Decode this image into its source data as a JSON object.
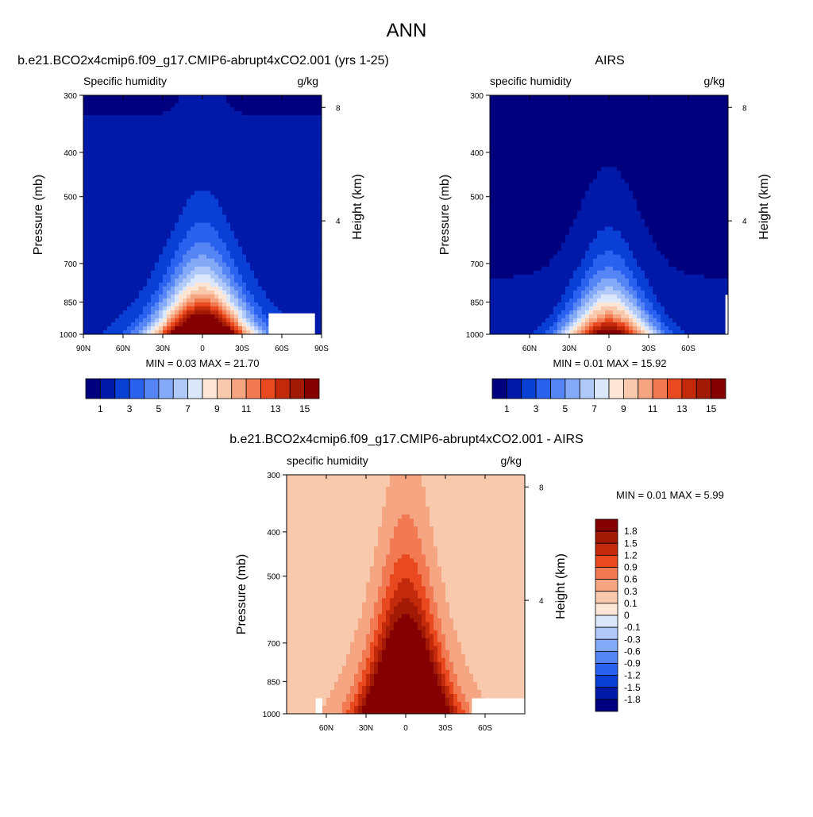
{
  "figure": {
    "title": "ANN"
  },
  "chart_data": [
    {
      "type": "heatmap",
      "title": "b.e21.BCO2x4cmip6.f09_g17.CMIP6-abrupt4xCO2.001 (yrs 1-25)",
      "subtitle_left": "Specific humidity",
      "units": "g/kg",
      "ylabel": "Pressure (mb)",
      "ylabel_right": "Height (km)",
      "x_ticks": [
        "90N",
        "60N",
        "30N",
        "0",
        "30S",
        "60S",
        "90S"
      ],
      "x_tick_values": [
        90,
        60,
        30,
        0,
        -30,
        -60,
        -90
      ],
      "xlim": [
        90,
        -90
      ],
      "y_ticks": [
        "300",
        "400",
        "500",
        "700",
        "850",
        "1000"
      ],
      "y_tick_values": [
        300,
        400,
        500,
        700,
        850,
        1000
      ],
      "ylim": [
        1000,
        300
      ],
      "y_scale": "log",
      "height_ticks": [
        "8",
        "4"
      ],
      "height_tick_values": [
        8,
        4
      ],
      "stats": {
        "min_label": "MIN =",
        "min": "0.03",
        "max_label": "MAX =",
        "max": "21.70"
      },
      "levels": [
        1,
        2,
        3,
        4,
        5,
        6,
        7,
        8,
        9,
        10,
        11,
        12,
        13,
        14,
        15
      ],
      "colorbar_labels": [
        "1",
        "3",
        "5",
        "7",
        "9",
        "11",
        "13",
        "15"
      ],
      "colorbar_orientation": "horizontal",
      "colors": [
        "#00007f",
        "#0019a8",
        "#0a3fd6",
        "#2a62ef",
        "#5585f4",
        "#84a9f7",
        "#b0c9f9",
        "#dbe7fb",
        "#fde6d6",
        "#f9c9ad",
        "#f5a582",
        "#f27a52",
        "#e9491f",
        "#c22a0b",
        "#a21a06",
        "#850000"
      ],
      "field": {
        "peak": 21.7,
        "center_lat": 0,
        "decay": 1.48,
        "lat_width": 36,
        "pole_floor": 0.6
      },
      "missing_data": [
        {
          "lat_from": 50,
          "lat_to": 85,
          "p_from": 900,
          "p_to": 1000,
          "side": "south"
        }
      ]
    },
    {
      "type": "heatmap",
      "title": "AIRS",
      "subtitle_left": "specific humidity",
      "units": "g/kg",
      "ylabel": "Pressure (mb)",
      "ylabel_right": "Height (km)",
      "x_ticks": [
        "60N",
        "30N",
        "0",
        "30S",
        "60S"
      ],
      "x_tick_values": [
        60,
        30,
        0,
        -30,
        -60
      ],
      "xlim": [
        90,
        -90
      ],
      "y_ticks": [
        "300",
        "400",
        "500",
        "700",
        "850",
        "1000"
      ],
      "y_tick_values": [
        300,
        400,
        500,
        700,
        850,
        1000
      ],
      "ylim": [
        1000,
        300
      ],
      "y_scale": "log",
      "height_ticks": [
        "8",
        "4"
      ],
      "height_tick_values": [
        8,
        4
      ],
      "stats": {
        "min_label": "MIN =",
        "min": "0.01",
        "max_label": "MAX =",
        "max": "15.92"
      },
      "levels": [
        1,
        2,
        3,
        4,
        5,
        6,
        7,
        8,
        9,
        10,
        11,
        12,
        13,
        14,
        15
      ],
      "colorbar_labels": [
        "1",
        "3",
        "5",
        "7",
        "9",
        "11",
        "13",
        "15"
      ],
      "colorbar_orientation": "horizontal",
      "colors": [
        "#00007f",
        "#0019a8",
        "#0a3fd6",
        "#2a62ef",
        "#5585f4",
        "#84a9f7",
        "#b0c9f9",
        "#dbe7fb",
        "#fde6d6",
        "#f9c9ad",
        "#f5a582",
        "#f27a52",
        "#e9491f",
        "#c22a0b",
        "#a21a06",
        "#850000"
      ],
      "field": {
        "peak": 15.9,
        "center_lat": 0,
        "decay": 1.62,
        "lat_width": 34,
        "pole_floor": 0.4
      },
      "missing_data": [
        {
          "lat_from": 88,
          "lat_to": 90,
          "p_from": 820,
          "p_to": 1000,
          "side": "south"
        }
      ]
    },
    {
      "type": "heatmap",
      "title": "b.e21.BCO2x4cmip6.f09_g17.CMIP6-abrupt4xCO2.001 - AIRS",
      "subtitle_left": "specific humidity",
      "units": "g/kg",
      "ylabel": "Pressure (mb)",
      "ylabel_right": "Height (km)",
      "x_ticks": [
        "60N",
        "30N",
        "0",
        "30S",
        "60S"
      ],
      "x_tick_values": [
        60,
        30,
        0,
        -30,
        -60
      ],
      "xlim": [
        90,
        -90
      ],
      "y_ticks": [
        "300",
        "400",
        "500",
        "700",
        "850",
        "1000"
      ],
      "y_tick_values": [
        300,
        400,
        500,
        700,
        850,
        1000
      ],
      "ylim": [
        1000,
        300
      ],
      "y_scale": "log",
      "height_ticks": [
        "8",
        "4"
      ],
      "height_tick_values": [
        8,
        4
      ],
      "stats": {
        "min_label": "MIN =",
        "min": "0.01",
        "max_label": "MAX =",
        "max": "5.99"
      },
      "levels": [
        -1.8,
        -1.5,
        -1.2,
        -0.9,
        -0.6,
        -0.3,
        -0.1,
        0,
        0.1,
        0.3,
        0.6,
        0.9,
        1.2,
        1.5,
        1.8
      ],
      "colorbar_labels": [
        "1.8",
        "1.5",
        "1.2",
        "0.9",
        "0.6",
        "0.3",
        "0.1",
        "0",
        "-0.1",
        "-0.3",
        "-0.6",
        "-0.9",
        "-1.2",
        "-1.5",
        "-1.8"
      ],
      "colorbar_orientation": "vertical",
      "colors": [
        "#00007f",
        "#0019a8",
        "#0a3fd6",
        "#2a62ef",
        "#5585f4",
        "#84a9f7",
        "#b0c9f9",
        "#dbe7fb",
        "#fde6d6",
        "#f9c9ad",
        "#f5a582",
        "#f27a52",
        "#e9491f",
        "#c22a0b",
        "#a21a06",
        "#850000"
      ],
      "field": {
        "peak": 5.99,
        "center_lat": 0,
        "decay": 0.85,
        "lat_width": 30,
        "pole_floor": 0.08
      },
      "missing_data": [
        {
          "lat_from": 68,
          "lat_to": 63,
          "p_from": 925,
          "p_to": 1000,
          "side": "north"
        },
        {
          "lat_from": 50,
          "lat_to": 90,
          "p_from": 925,
          "p_to": 1000,
          "side": "south"
        }
      ]
    }
  ]
}
